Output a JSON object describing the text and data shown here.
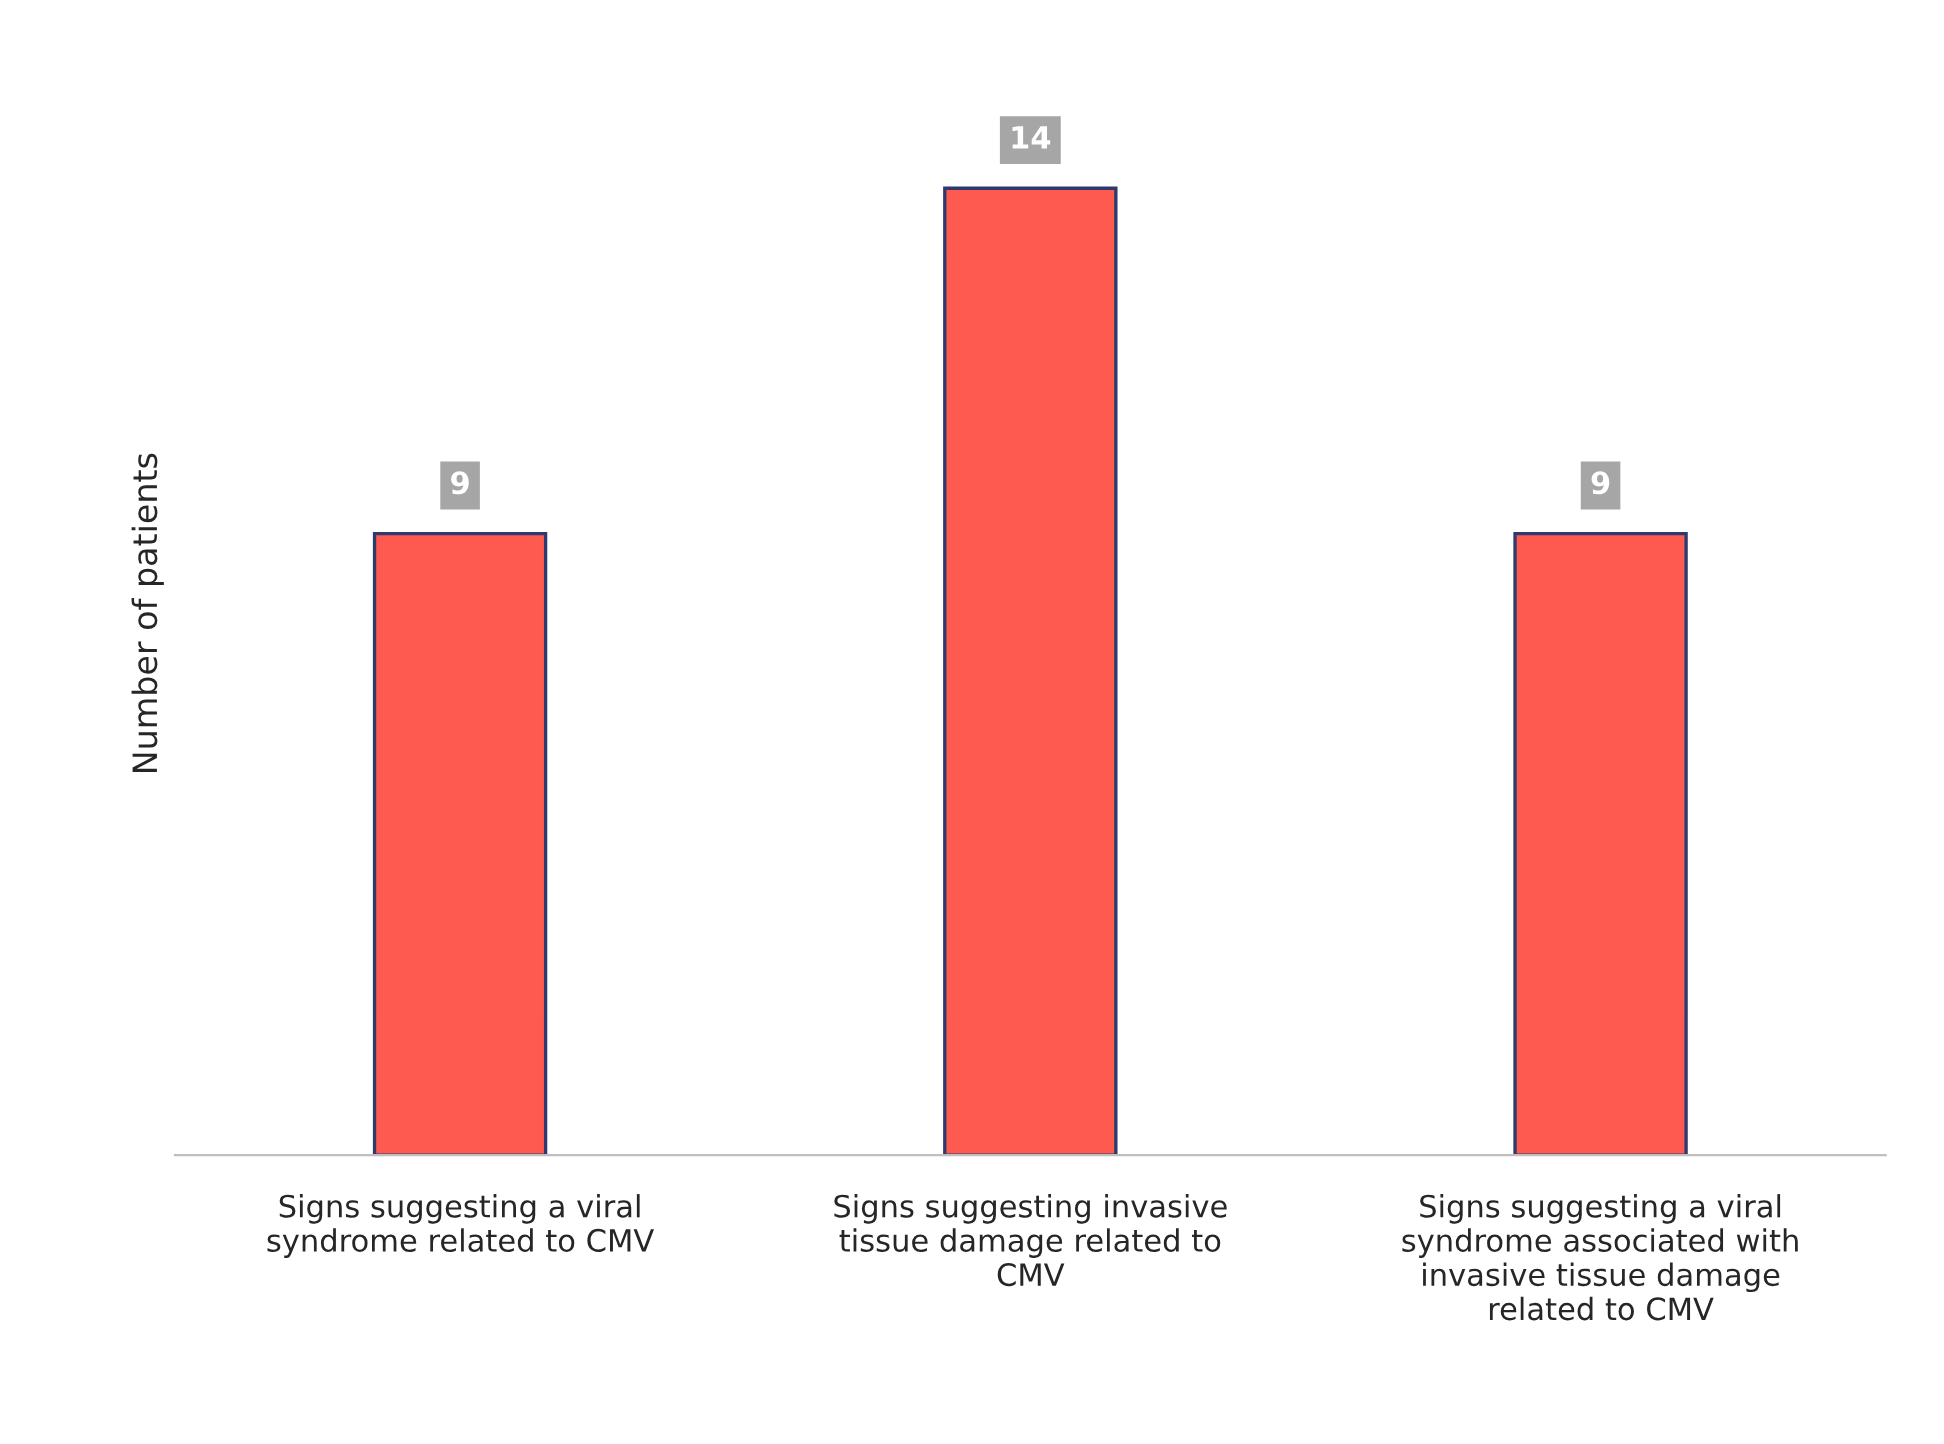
{
  "chart_data": {
    "type": "bar",
    "ylabel": "Number of patients",
    "categories": [
      "Signs suggesting a viral\nsyndrome related to CMV",
      "Signs suggesting invasive\ntissue damage related to\nCMV",
      "Signs suggesting a viral\nsyndrome associated with\ninvasive tissue damage\nrelated to CMV"
    ],
    "values": [
      9,
      14,
      9
    ],
    "color": "#ff5a4f",
    "data_labels": true,
    "grid": false,
    "legend": false,
    "tick_labels": "x"
  }
}
